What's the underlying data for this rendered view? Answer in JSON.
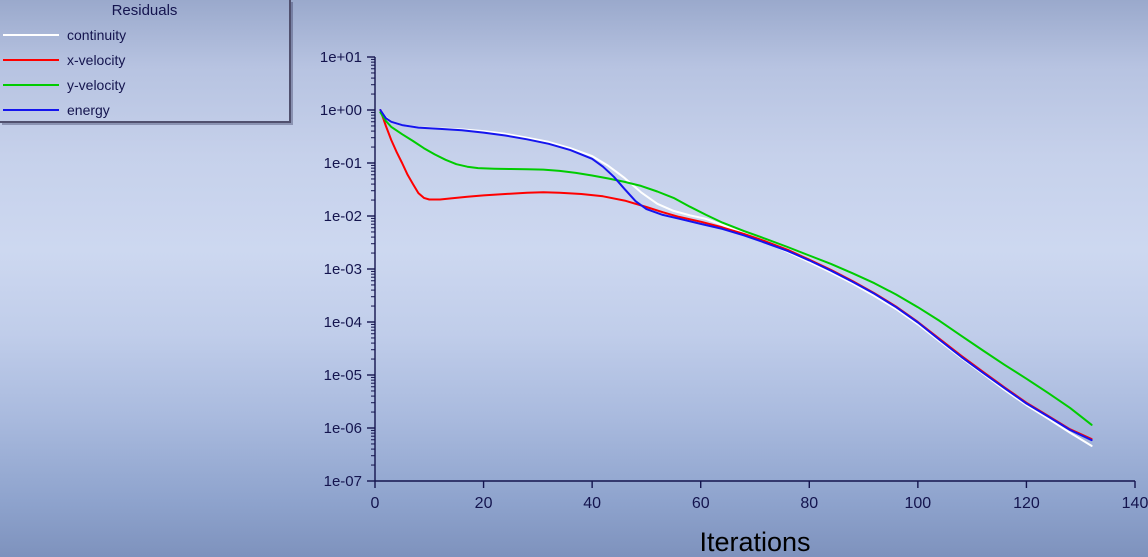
{
  "colors": {
    "axis_text": "#14144e",
    "xlabel_text": "#000000",
    "legend_text": "#14144e"
  },
  "chart_data": {
    "type": "line",
    "title": "Residuals",
    "xlabel": "Iterations",
    "ylabel": "",
    "legend_position": "top-left",
    "grid": false,
    "x_axis": {
      "min": 0,
      "max": 140,
      "ticks": [
        0,
        20,
        40,
        60,
        80,
        100,
        120,
        140
      ]
    },
    "y_axis": {
      "scale": "log",
      "min": 1e-07,
      "max": 10,
      "tick_labels": [
        "1e+01",
        "1e+00",
        "1e-01",
        "1e-02",
        "1e-03",
        "1e-04",
        "1e-05",
        "1e-06",
        "1e-07"
      ]
    },
    "series": [
      {
        "name": "continuity",
        "color": "#ffffff",
        "points": [
          [
            1,
            1.0
          ],
          [
            2,
            0.72
          ],
          [
            3,
            0.6
          ],
          [
            5,
            0.52
          ],
          [
            8,
            0.47
          ],
          [
            12,
            0.45
          ],
          [
            16,
            0.43
          ],
          [
            20,
            0.4
          ],
          [
            24,
            0.355
          ],
          [
            28,
            0.3
          ],
          [
            32,
            0.25
          ],
          [
            36,
            0.19
          ],
          [
            40,
            0.135
          ],
          [
            43,
            0.088
          ],
          [
            46,
            0.052
          ],
          [
            49,
            0.028
          ],
          [
            52,
            0.017
          ],
          [
            55,
            0.0125
          ],
          [
            58,
            0.0103
          ],
          [
            61,
            0.0088
          ],
          [
            64,
            0.0068
          ],
          [
            68,
            0.0047
          ],
          [
            72,
            0.0032
          ],
          [
            76,
            0.0021
          ],
          [
            80,
            0.00135
          ],
          [
            84,
            0.00086
          ],
          [
            88,
            0.00053
          ],
          [
            92,
            0.00031
          ],
          [
            96,
            0.000175
          ],
          [
            100,
            9e-05
          ],
          [
            104,
            4.3e-05
          ],
          [
            108,
            2.1e-05
          ],
          [
            112,
            1.05e-05
          ],
          [
            116,
            5.2e-06
          ],
          [
            120,
            2.7e-06
          ],
          [
            124,
            1.5e-06
          ],
          [
            128,
            8.2e-07
          ],
          [
            132,
            4.6e-07
          ]
        ]
      },
      {
        "name": "x-velocity",
        "color": "#ff0000",
        "points": [
          [
            1,
            1.0
          ],
          [
            2,
            0.5
          ],
          [
            3,
            0.27
          ],
          [
            4,
            0.16
          ],
          [
            5,
            0.1
          ],
          [
            6,
            0.06
          ],
          [
            7,
            0.04
          ],
          [
            8,
            0.027
          ],
          [
            9,
            0.022
          ],
          [
            10,
            0.0205
          ],
          [
            12,
            0.0205
          ],
          [
            14,
            0.0215
          ],
          [
            17,
            0.023
          ],
          [
            20,
            0.0245
          ],
          [
            24,
            0.026
          ],
          [
            28,
            0.0275
          ],
          [
            31,
            0.028
          ],
          [
            34,
            0.0275
          ],
          [
            38,
            0.026
          ],
          [
            42,
            0.0235
          ],
          [
            46,
            0.0195
          ],
          [
            50,
            0.0148
          ],
          [
            53,
            0.0118
          ],
          [
            56,
            0.0096
          ],
          [
            60,
            0.0078
          ],
          [
            64,
            0.0061
          ],
          [
            68,
            0.0046
          ],
          [
            72,
            0.0033
          ],
          [
            76,
            0.0023
          ],
          [
            80,
            0.0015
          ],
          [
            84,
            0.00096
          ],
          [
            88,
            0.00059
          ],
          [
            92,
            0.00035
          ],
          [
            96,
            0.000195
          ],
          [
            100,
            0.0001
          ],
          [
            104,
            4.8e-05
          ],
          [
            108,
            2.3e-05
          ],
          [
            112,
            1.15e-05
          ],
          [
            116,
            5.8e-06
          ],
          [
            120,
            3e-06
          ],
          [
            124,
            1.7e-06
          ],
          [
            128,
            9.5e-07
          ],
          [
            132,
            6.2e-07
          ]
        ]
      },
      {
        "name": "y-velocity",
        "color": "#00cc00",
        "points": [
          [
            1,
            0.9
          ],
          [
            2,
            0.62
          ],
          [
            3,
            0.48
          ],
          [
            5,
            0.35
          ],
          [
            7,
            0.26
          ],
          [
            9,
            0.19
          ],
          [
            11,
            0.145
          ],
          [
            13,
            0.115
          ],
          [
            15,
            0.095
          ],
          [
            17,
            0.085
          ],
          [
            19,
            0.08
          ],
          [
            22,
            0.078
          ],
          [
            25,
            0.077
          ],
          [
            28,
            0.0765
          ],
          [
            31,
            0.075
          ],
          [
            34,
            0.071
          ],
          [
            37,
            0.065
          ],
          [
            40,
            0.058
          ],
          [
            43,
            0.051
          ],
          [
            46,
            0.044
          ],
          [
            49,
            0.037
          ],
          [
            52,
            0.029
          ],
          [
            55,
            0.022
          ],
          [
            58,
            0.015
          ],
          [
            61,
            0.0105
          ],
          [
            64,
            0.0075
          ],
          [
            68,
            0.0052
          ],
          [
            72,
            0.0037
          ],
          [
            76,
            0.0026
          ],
          [
            80,
            0.0018
          ],
          [
            84,
            0.00125
          ],
          [
            88,
            0.00083
          ],
          [
            92,
            0.00054
          ],
          [
            96,
            0.00033
          ],
          [
            100,
            0.00019
          ],
          [
            104,
            0.000105
          ],
          [
            108,
            5.5e-05
          ],
          [
            112,
            2.9e-05
          ],
          [
            116,
            1.55e-05
          ],
          [
            120,
            8.5e-06
          ],
          [
            124,
            4.6e-06
          ],
          [
            128,
            2.4e-06
          ],
          [
            132,
            1.15e-06
          ]
        ]
      },
      {
        "name": "energy",
        "color": "#1515ee",
        "points": [
          [
            1,
            1.0
          ],
          [
            2,
            0.7
          ],
          [
            3,
            0.6
          ],
          [
            5,
            0.52
          ],
          [
            8,
            0.465
          ],
          [
            12,
            0.44
          ],
          [
            16,
            0.415
          ],
          [
            20,
            0.375
          ],
          [
            24,
            0.33
          ],
          [
            28,
            0.28
          ],
          [
            32,
            0.23
          ],
          [
            36,
            0.175
          ],
          [
            40,
            0.12
          ],
          [
            42,
            0.085
          ],
          [
            44,
            0.055
          ],
          [
            46,
            0.032
          ],
          [
            48,
            0.019
          ],
          [
            50,
            0.0135
          ],
          [
            53,
            0.0105
          ],
          [
            56,
            0.0089
          ],
          [
            60,
            0.0071
          ],
          [
            64,
            0.0057
          ],
          [
            68,
            0.0043
          ],
          [
            72,
            0.0031
          ],
          [
            76,
            0.0022
          ],
          [
            80,
            0.00145
          ],
          [
            84,
            0.00093
          ],
          [
            88,
            0.00057
          ],
          [
            92,
            0.00034
          ],
          [
            96,
            0.00019
          ],
          [
            100,
            9.8e-05
          ],
          [
            104,
            4.6e-05
          ],
          [
            108,
            2.2e-05
          ],
          [
            112,
            1.1e-05
          ],
          [
            116,
            5.6e-06
          ],
          [
            120,
            2.9e-06
          ],
          [
            124,
            1.65e-06
          ],
          [
            128,
            9.2e-07
          ],
          [
            132,
            5.9e-07
          ]
        ]
      }
    ]
  }
}
